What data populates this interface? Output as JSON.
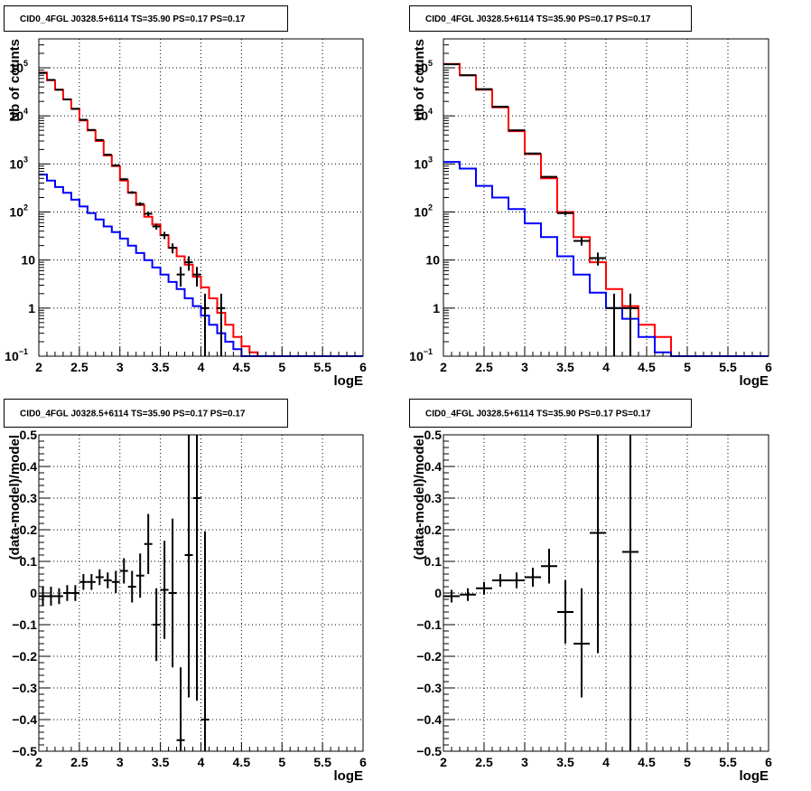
{
  "chart_data": [
    {
      "type": "line",
      "title": "CID0_4FGL J0328.5+6114 TS=35.90 PS=0.17 PS=0.17",
      "xlabel": "logE",
      "ylabel": "Nb of counts",
      "xlim": [
        2,
        6
      ],
      "ylim": [
        0.1,
        400000
      ],
      "yscale": "log",
      "grid": true,
      "x_ticks": [
        "2",
        "2.5",
        "3",
        "3.5",
        "4",
        "4.5",
        "5",
        "5.5",
        "6"
      ],
      "y_ticks": [
        "10⁻¹",
        "1",
        "10",
        "10²",
        "10³",
        "10⁴",
        "10⁵"
      ],
      "bin_edges": [
        2,
        2.1,
        2.2,
        2.3,
        2.4,
        2.5,
        2.6,
        2.7,
        2.8,
        2.9,
        3.0,
        3.1,
        3.2,
        3.3,
        3.4,
        3.5,
        3.6,
        3.7,
        3.8,
        3.9,
        4.0,
        4.1,
        4.2,
        4.3,
        4.4,
        4.5,
        4.6,
        4.7,
        4.8,
        4.9,
        5.0,
        5.1,
        5.2,
        5.3,
        5.4,
        5.5,
        5.6,
        5.7,
        5.8,
        5.9,
        6.0
      ],
      "series": [
        {
          "color": "#ff0000",
          "values": [
            80000,
            55000,
            35000,
            22000,
            14000,
            8000,
            5000,
            3000,
            1500,
            900,
            450,
            250,
            140,
            80,
            55,
            33,
            18,
            12,
            8,
            4.5,
            2.7,
            1.6,
            0.8,
            0.45,
            0.25,
            0.16,
            0.12,
            0.1,
            0.1,
            0.1,
            0.1,
            0.1,
            0.1,
            0.1,
            0.1,
            0.1,
            0.1,
            0.1,
            0.1,
            0.1
          ]
        },
        {
          "color": "#0000ff",
          "values": [
            600,
            450,
            330,
            250,
            180,
            130,
            95,
            70,
            50,
            38,
            28,
            20,
            14,
            10,
            7,
            5,
            3.5,
            2.5,
            1.6,
            1.1,
            0.7,
            0.45,
            0.3,
            0.2,
            0.14,
            0.1,
            0.1,
            0.1,
            0.1,
            0.1,
            0.1,
            0.1,
            0.1,
            0.1,
            0.1,
            0.1,
            0.1,
            0.1,
            0.1,
            0.1
          ]
        }
      ],
      "data_points": [
        {
          "x": 2.05,
          "y": 78000,
          "elo": 77700,
          "ehi": 78300
        },
        {
          "x": 2.15,
          "y": 56000,
          "elo": 55760,
          "ehi": 56240
        },
        {
          "x": 2.25,
          "y": 35000,
          "elo": 34810,
          "ehi": 35190
        },
        {
          "x": 2.35,
          "y": 22000,
          "elo": 21850,
          "ehi": 22150
        },
        {
          "x": 2.45,
          "y": 14000,
          "elo": 13880,
          "ehi": 14120
        },
        {
          "x": 2.55,
          "y": 8300,
          "elo": 8210,
          "ehi": 8390
        },
        {
          "x": 2.65,
          "y": 5100,
          "elo": 5030,
          "ehi": 5170
        },
        {
          "x": 2.75,
          "y": 3150,
          "elo": 3095,
          "ehi": 3205
        },
        {
          "x": 2.85,
          "y": 1560,
          "elo": 1520,
          "ehi": 1600
        },
        {
          "x": 2.95,
          "y": 930,
          "elo": 900,
          "ehi": 960
        },
        {
          "x": 3.05,
          "y": 480,
          "elo": 458,
          "ehi": 502
        },
        {
          "x": 3.15,
          "y": 255,
          "elo": 239,
          "ehi": 271
        },
        {
          "x": 3.25,
          "y": 147,
          "elo": 135,
          "ehi": 159
        },
        {
          "x": 3.35,
          "y": 92,
          "elo": 82,
          "ehi": 102
        },
        {
          "x": 3.45,
          "y": 50,
          "elo": 43,
          "ehi": 57
        },
        {
          "x": 3.55,
          "y": 33,
          "elo": 27.3,
          "ehi": 38.7
        },
        {
          "x": 3.65,
          "y": 18,
          "elo": 13.8,
          "ehi": 22.2
        },
        {
          "x": 3.75,
          "y": 5,
          "elo": 2.8,
          "ehi": 7.2
        },
        {
          "x": 3.85,
          "y": 9,
          "elo": 6,
          "ehi": 12
        },
        {
          "x": 3.95,
          "y": 5,
          "elo": 2.8,
          "ehi": 7.2
        },
        {
          "x": 4.05,
          "y": 1,
          "elo": 0.1,
          "ehi": 2
        },
        {
          "x": 4.25,
          "y": 1,
          "elo": 0.1,
          "ehi": 2
        }
      ]
    },
    {
      "type": "line",
      "title": "CID0_4FGL J0328.5+6114 TS=35.90 PS=0.17 PS=0.17",
      "xlabel": "logE",
      "ylabel": "nb of counts",
      "xlim": [
        2,
        6
      ],
      "ylim": [
        0.1,
        400000
      ],
      "yscale": "log",
      "grid": true,
      "x_ticks": [
        "2",
        "2.5",
        "3",
        "3.5",
        "4",
        "4.5",
        "5",
        "5.5",
        "6"
      ],
      "y_ticks": [
        "10⁻¹",
        "1",
        "10",
        "10²",
        "10³",
        "10⁴",
        "10⁵"
      ],
      "bin_edges": [
        2,
        2.2,
        2.4,
        2.6,
        2.8,
        3.0,
        3.2,
        3.4,
        3.6,
        3.8,
        4.0,
        4.2,
        4.4,
        4.6,
        4.8,
        5.0,
        5.2,
        5.4,
        5.6,
        5.8,
        6.0
      ],
      "series": [
        {
          "color": "#ff0000",
          "values": [
            120000,
            70000,
            35000,
            15000,
            4800,
            1600,
            500,
            100,
            30,
            9,
            2.5,
            1.1,
            0.45,
            0.25,
            0.1,
            0.1,
            0.1,
            0.1,
            0.1,
            0.1
          ]
        },
        {
          "color": "#0000ff",
          "values": [
            1100,
            800,
            350,
            200,
            115,
            58,
            30,
            12,
            5,
            2.1,
            1,
            0.6,
            0.25,
            0.12,
            0.1,
            0.1,
            0.1,
            0.1,
            0.1,
            0.1
          ]
        }
      ],
      "data_points": [
        {
          "x": 2.1,
          "y": 118000,
          "elo": 117650,
          "ehi": 118350
        },
        {
          "x": 2.3,
          "y": 70000,
          "elo": 69740,
          "ehi": 70260
        },
        {
          "x": 2.5,
          "y": 36000,
          "elo": 35810,
          "ehi": 36190
        },
        {
          "x": 2.7,
          "y": 15500,
          "elo": 15380,
          "ehi": 15620
        },
        {
          "x": 2.9,
          "y": 5000,
          "elo": 4930,
          "ehi": 5070
        },
        {
          "x": 3.1,
          "y": 1650,
          "elo": 1610,
          "ehi": 1690
        },
        {
          "x": 3.3,
          "y": 540,
          "elo": 517,
          "ehi": 563
        },
        {
          "x": 3.5,
          "y": 95,
          "elo": 85,
          "ehi": 105
        },
        {
          "x": 3.7,
          "y": 25,
          "elo": 20,
          "ehi": 30
        },
        {
          "x": 3.9,
          "y": 11,
          "elo": 7.7,
          "ehi": 14.3
        },
        {
          "x": 4.1,
          "y": 1,
          "elo": 0.1,
          "ehi": 2
        },
        {
          "x": 4.3,
          "y": 1,
          "elo": 0.1,
          "ehi": 2
        }
      ]
    },
    {
      "type": "scatter",
      "title": "CID0_4FGL J0328.5+6114 TS=35.90 PS=0.17 PS=0.17",
      "xlabel": "logE",
      "ylabel": "(data-model)/model",
      "xlim": [
        2,
        6
      ],
      "ylim": [
        -0.5,
        0.5
      ],
      "grid": true,
      "x_ticks": [
        "2",
        "2.5",
        "3",
        "3.5",
        "4",
        "4.5",
        "5",
        "5.5",
        "6"
      ],
      "y_ticks": [
        "−0.5",
        "−0.4",
        "−0.3",
        "−0.2",
        "−0.1",
        "0",
        "0.1",
        "0.2",
        "0.3",
        "0.4",
        "0.5"
      ],
      "bin_halfwidth": 0.05,
      "points": [
        {
          "x": 2.05,
          "y": -0.01,
          "elo": -0.04,
          "ehi": 0.02
        },
        {
          "x": 2.15,
          "y": -0.01,
          "elo": -0.04,
          "ehi": 0.02
        },
        {
          "x": 2.25,
          "y": -0.01,
          "elo": -0.035,
          "ehi": 0.015
        },
        {
          "x": 2.35,
          "y": 0.0,
          "elo": -0.025,
          "ehi": 0.025
        },
        {
          "x": 2.45,
          "y": 0.0,
          "elo": -0.025,
          "ehi": 0.025
        },
        {
          "x": 2.55,
          "y": 0.035,
          "elo": 0.01,
          "ehi": 0.06
        },
        {
          "x": 2.65,
          "y": 0.035,
          "elo": 0.01,
          "ehi": 0.06
        },
        {
          "x": 2.75,
          "y": 0.05,
          "elo": 0.025,
          "ehi": 0.075
        },
        {
          "x": 2.85,
          "y": 0.04,
          "elo": 0.015,
          "ehi": 0.065
        },
        {
          "x": 2.95,
          "y": 0.035,
          "elo": 0.0,
          "ehi": 0.07
        },
        {
          "x": 3.05,
          "y": 0.07,
          "elo": 0.03,
          "ehi": 0.11
        },
        {
          "x": 3.15,
          "y": 0.02,
          "elo": -0.03,
          "ehi": 0.07
        },
        {
          "x": 3.25,
          "y": 0.055,
          "elo": -0.015,
          "ehi": 0.125
        },
        {
          "x": 3.35,
          "y": 0.155,
          "elo": 0.06,
          "ehi": 0.25
        },
        {
          "x": 3.45,
          "y": -0.1,
          "elo": -0.215,
          "ehi": 0.015
        },
        {
          "x": 3.55,
          "y": 0.01,
          "elo": -0.145,
          "ehi": 0.165
        },
        {
          "x": 3.65,
          "y": 0.0,
          "elo": -0.235,
          "ehi": 0.235
        },
        {
          "x": 3.75,
          "y": -0.465,
          "elo": -0.5,
          "ehi": -0.235
        },
        {
          "x": 3.85,
          "y": 0.12,
          "elo": -0.33,
          "ehi": 0.5
        },
        {
          "x": 3.95,
          "y": 0.3,
          "elo": -0.34,
          "ehi": 0.5
        },
        {
          "x": 4.05,
          "y": -0.4,
          "elo": -0.5,
          "ehi": 0.195
        }
      ]
    },
    {
      "type": "scatter",
      "title": "CID0_4FGL J0328.5+6114 TS=35.90 PS=0.17 PS=0.17",
      "xlabel": "logE",
      "ylabel": "(data-model)/model",
      "xlim": [
        2,
        6
      ],
      "ylim": [
        -0.5,
        0.5
      ],
      "grid": true,
      "x_ticks": [
        "2",
        "2.5",
        "3",
        "3.5",
        "4",
        "4.5",
        "5",
        "5.5",
        "6"
      ],
      "y_ticks": [
        "−0.5",
        "−0.4",
        "−0.3",
        "−0.2",
        "−0.1",
        "0",
        "0.1",
        "0.2",
        "0.3",
        "0.4",
        "0.5"
      ],
      "bin_halfwidth": 0.1,
      "points": [
        {
          "x": 2.1,
          "y": -0.01,
          "elo": -0.03,
          "ehi": 0.01
        },
        {
          "x": 2.3,
          "y": -0.005,
          "elo": -0.025,
          "ehi": 0.015
        },
        {
          "x": 2.5,
          "y": 0.015,
          "elo": -0.005,
          "ehi": 0.035
        },
        {
          "x": 2.7,
          "y": 0.04,
          "elo": 0.02,
          "ehi": 0.06
        },
        {
          "x": 2.9,
          "y": 0.04,
          "elo": 0.015,
          "ehi": 0.065
        },
        {
          "x": 3.1,
          "y": 0.05,
          "elo": 0.02,
          "ehi": 0.08
        },
        {
          "x": 3.3,
          "y": 0.085,
          "elo": 0.03,
          "ehi": 0.14
        },
        {
          "x": 3.5,
          "y": -0.06,
          "elo": -0.16,
          "ehi": 0.04
        },
        {
          "x": 3.7,
          "y": -0.16,
          "elo": -0.33,
          "ehi": 0.015
        },
        {
          "x": 3.9,
          "y": 0.19,
          "elo": -0.19,
          "ehi": 0.5
        },
        {
          "x": 4.3,
          "y": 0.13,
          "elo": -0.5,
          "ehi": 0.5
        }
      ]
    }
  ]
}
